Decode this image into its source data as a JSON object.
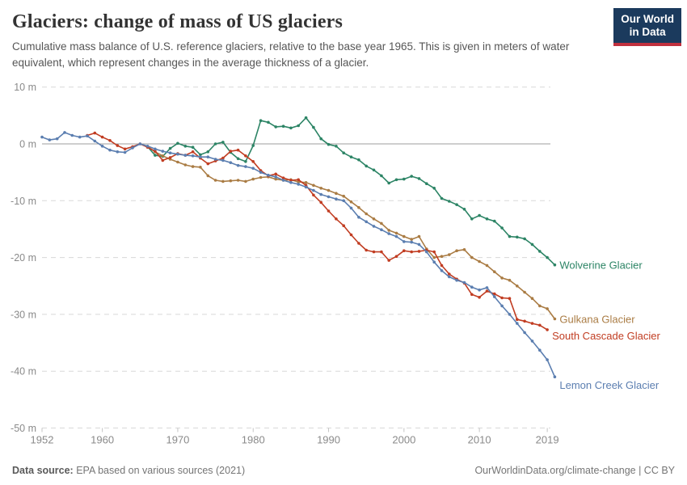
{
  "header": {
    "title": "Glaciers: change of mass of US glaciers",
    "subtitle": "Cumulative mass balance of U.S. reference glaciers, relative to the base year 1965. This is given in meters of water equivalent, which represent changes in the average thickness of a glacier.",
    "logo_line1": "Our World",
    "logo_line2": "in Data",
    "logo_bg_color": "#1b3a5d",
    "logo_stripe_color": "#c0303e"
  },
  "footer": {
    "source_label": "Data source:",
    "source_text": "EPA based on various sources (2021)",
    "attribution": "OurWorldinData.org/climate-change | CC BY"
  },
  "chart_data": {
    "type": "line",
    "title": "Glaciers: change of mass of US glaciers",
    "xlabel": "",
    "ylabel": "",
    "unit": "m",
    "xlim": [
      1952,
      2021
    ],
    "ylim": [
      -50,
      10
    ],
    "grid": "horizontal-dashed",
    "zero_line": true,
    "legend_position": "end-of-line-labels",
    "x_ticks": [
      1952,
      1960,
      1970,
      1980,
      1990,
      2000,
      2010,
      2019
    ],
    "y_ticks": [
      10,
      0,
      -10,
      -20,
      -30,
      -40,
      -50
    ],
    "y_tick_labels": [
      "10 m",
      "0 m",
      "-10 m",
      "-20 m",
      "-30 m",
      "-40 m",
      "-50 m"
    ],
    "axis_text_color": "#8a8a8a",
    "gridline_color": "#d8d8d8",
    "zero_line_color": "#9c9c9c",
    "series": [
      {
        "name": "Wolverine Glacier",
        "color": "#2c8465",
        "start_year": 1966,
        "end_year": 2020,
        "values": [
          -0.5,
          -2.0,
          -2.2,
          -0.8,
          0.1,
          -0.4,
          -0.6,
          -1.9,
          -1.4,
          0.0,
          0.3,
          -1.5,
          -2.6,
          -3.1,
          -0.3,
          4.1,
          3.8,
          3.0,
          3.1,
          2.8,
          3.2,
          4.6,
          2.9,
          0.9,
          -0.1,
          -0.4,
          -1.6,
          -2.3,
          -2.8,
          -3.9,
          -4.6,
          -5.6,
          -6.9,
          -6.3,
          -6.2,
          -5.7,
          -6.1,
          -7.0,
          -7.8,
          -9.6,
          -10.1,
          -10.7,
          -11.5,
          -13.2,
          -12.6,
          -13.2,
          -13.6,
          -14.8,
          -16.3,
          -16.4,
          -16.7,
          -17.7,
          -18.9,
          -20.0,
          -21.3
        ]
      },
      {
        "name": "Gulkana Glacier",
        "color": "#aa7c44",
        "start_year": 1966,
        "end_year": 2020,
        "values": [
          -0.5,
          -1.4,
          -2.1,
          -2.7,
          -3.2,
          -3.7,
          -4.0,
          -4.1,
          -5.6,
          -6.4,
          -6.6,
          -6.5,
          -6.4,
          -6.6,
          -6.2,
          -5.9,
          -5.8,
          -6.2,
          -6.4,
          -6.3,
          -6.7,
          -6.8,
          -7.3,
          -7.8,
          -8.2,
          -8.7,
          -9.2,
          -10.2,
          -11.2,
          -12.3,
          -13.2,
          -14.0,
          -15.2,
          -15.7,
          -16.3,
          -16.8,
          -16.3,
          -18.5,
          -20.0,
          -19.8,
          -19.5,
          -18.8,
          -18.6,
          -20.0,
          -20.7,
          -21.4,
          -22.5,
          -23.6,
          -24.0,
          -25.0,
          -26.1,
          -27.2,
          -28.5,
          -29.0,
          -30.8
        ]
      },
      {
        "name": "South Cascade Glacier",
        "color": "#c13d22",
        "start_year": 1958,
        "end_year": 2019,
        "values": [
          1.5,
          1.9,
          1.2,
          0.6,
          -0.3,
          -0.9,
          -0.5,
          0.0,
          -0.6,
          -1.3,
          -2.9,
          -2.4,
          -1.7,
          -2.0,
          -1.4,
          -2.5,
          -3.5,
          -3.0,
          -2.5,
          -1.3,
          -1.1,
          -2.1,
          -3.1,
          -4.7,
          -5.6,
          -5.3,
          -6.0,
          -6.4,
          -6.3,
          -7.3,
          -9.0,
          -10.3,
          -11.8,
          -13.2,
          -14.4,
          -16.0,
          -17.5,
          -18.7,
          -19.0,
          -19.0,
          -20.5,
          -19.8,
          -18.8,
          -19.0,
          -18.9,
          -18.7,
          -19.0,
          -21.4,
          -22.9,
          -23.8,
          -24.5,
          -26.5,
          -27.0,
          -25.9,
          -26.4,
          -27.1,
          -27.2,
          -30.9,
          -31.2,
          -31.6,
          -31.9,
          -32.7
        ]
      },
      {
        "name": "Lemon Creek Glacier",
        "color": "#5b7eb0",
        "start_year": 1952,
        "end_year": 2020,
        "values": [
          1.2,
          0.7,
          0.9,
          2.0,
          1.5,
          1.2,
          1.4,
          0.5,
          -0.4,
          -1.1,
          -1.4,
          -1.5,
          -0.7,
          0.0,
          -0.4,
          -0.9,
          -1.3,
          -1.6,
          -1.8,
          -2.0,
          -2.1,
          -2.3,
          -2.3,
          -2.7,
          -2.9,
          -3.3,
          -3.8,
          -4.0,
          -4.3,
          -5.0,
          -5.5,
          -5.8,
          -6.4,
          -6.8,
          -7.1,
          -7.6,
          -8.2,
          -8.9,
          -9.3,
          -9.7,
          -10.0,
          -11.3,
          -12.9,
          -13.7,
          -14.5,
          -15.1,
          -15.8,
          -16.3,
          -17.2,
          -17.3,
          -17.7,
          -19.0,
          -20.8,
          -22.3,
          -23.4,
          -24.0,
          -24.4,
          -25.2,
          -25.7,
          -25.3,
          -26.9,
          -28.5,
          -30.0,
          -31.6,
          -33.2,
          -34.7,
          -36.3,
          -38.0,
          -41.0
        ]
      }
    ]
  }
}
